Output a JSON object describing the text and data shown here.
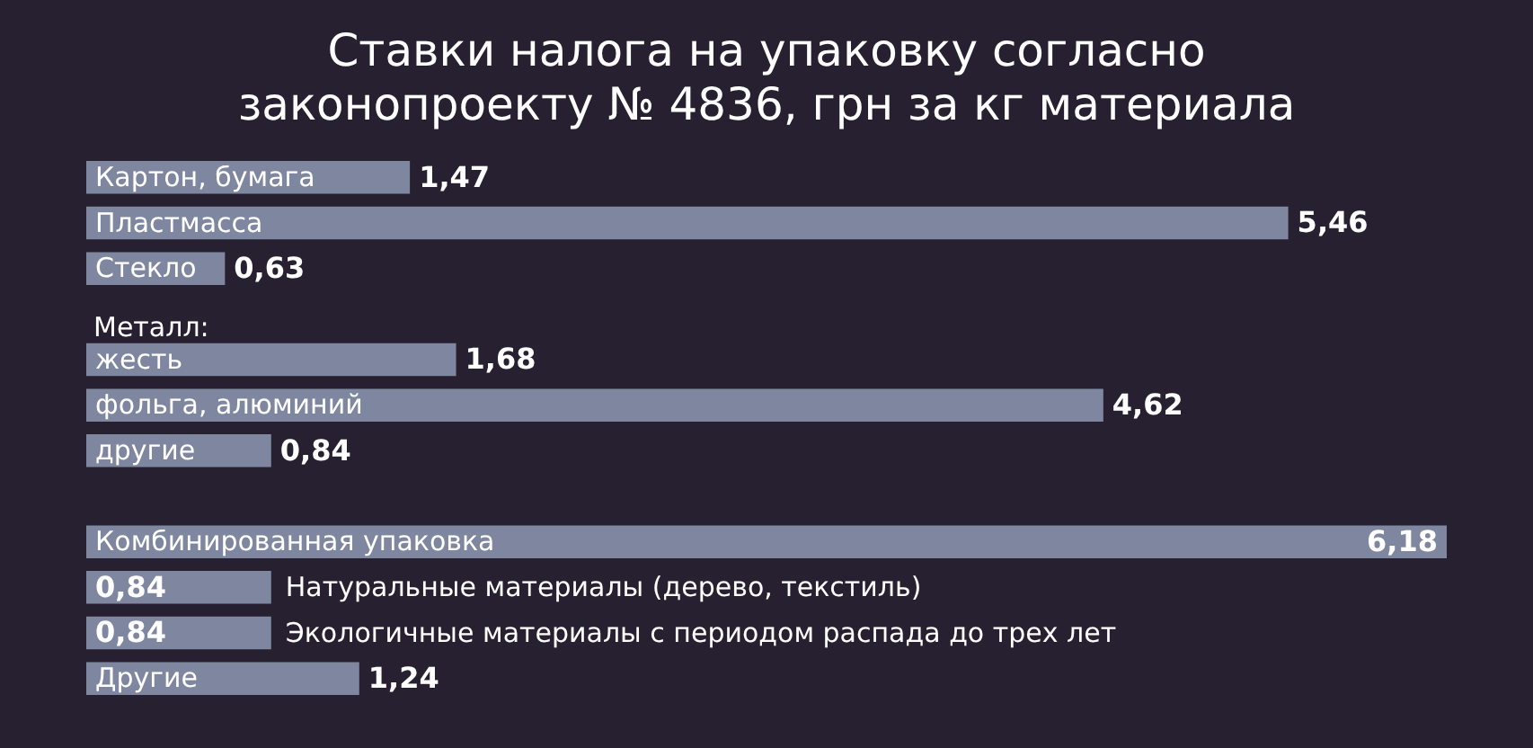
{
  "chart_data": {
    "type": "bar",
    "orientation": "horizontal",
    "title": "Ставки налога на упаковку согласно законопроекту № 4836, грн за кг материала",
    "categories": [
      "Картон, бумага",
      "Пластмасса",
      "Стекло",
      null,
      "жесть",
      "фольга, алюминий",
      "другие",
      null,
      "Комбинированная упаковка",
      "Натуральные материалы (дерево, текстиль)",
      "Экологичные материалы с периодом распада до трех лет",
      "Другие"
    ],
    "values": [
      1.47,
      5.46,
      0.63,
      null,
      1.68,
      4.62,
      0.84,
      null,
      6.18,
      0.84,
      0.84,
      1.24
    ],
    "value_labels": [
      "1,47",
      "5,46",
      "0,63",
      null,
      "1,68",
      "4,62",
      "0,84",
      null,
      "6,18",
      "0,84",
      "0,84",
      "1,24"
    ],
    "annotations": [
      {
        "text": "Металл:",
        "x": 0,
        "y": "жесть"
      }
    ],
    "color": "#7f87a0",
    "tick_labels": "y"
  }
}
